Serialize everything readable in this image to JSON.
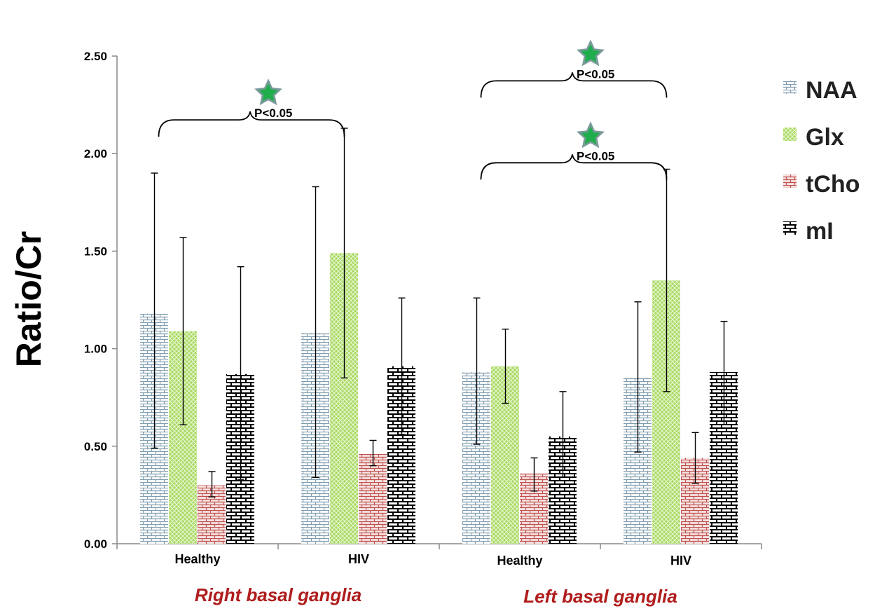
{
  "chart_data": {
    "type": "bar",
    "title": "",
    "ylabel": "Ratio/Cr",
    "xlabel": "",
    "ylim": [
      0,
      2.5
    ],
    "yticks": [
      "0.00",
      "0.50",
      "1.00",
      "1.50",
      "2.00",
      "2.50"
    ],
    "categories": [
      "Healthy",
      "HIV",
      "Healthy",
      "HIV"
    ],
    "groups": [
      {
        "label": "Right basal ganglia",
        "categories": [
          0,
          1
        ]
      },
      {
        "label": "Left basal ganglia",
        "categories": [
          2,
          3
        ]
      }
    ],
    "series": [
      {
        "name": "NAA",
        "color": "#8aa6b8",
        "pattern": "brick-fine",
        "values": [
          1.18,
          1.08,
          0.88,
          0.85
        ],
        "err_low": [
          0.49,
          0.34,
          0.51,
          0.47
        ],
        "err_high": [
          1.9,
          1.83,
          1.26,
          1.24
        ]
      },
      {
        "name": "Glx",
        "color": "#8ccf3c",
        "pattern": "crosshatch",
        "values": [
          1.09,
          1.49,
          0.91,
          1.35
        ],
        "err_low": [
          0.61,
          0.85,
          0.72,
          0.78
        ],
        "err_high": [
          1.57,
          2.13,
          1.1,
          1.92
        ]
      },
      {
        "name": "tCho",
        "color": "#c0504d",
        "pattern": "brick-fine",
        "values": [
          0.3,
          0.46,
          0.36,
          0.44
        ],
        "err_low": [
          0.24,
          0.4,
          0.27,
          0.31
        ],
        "err_high": [
          0.37,
          0.53,
          0.44,
          0.57
        ]
      },
      {
        "name": "mI",
        "color": "#111111",
        "pattern": "brick-bold",
        "values": [
          0.87,
          0.91,
          0.55,
          0.88
        ],
        "err_low": [
          0.33,
          0.56,
          0.34,
          0.61
        ],
        "err_high": [
          1.42,
          1.26,
          0.78,
          1.14
        ]
      }
    ],
    "annotations": [
      {
        "text": "P<0.05",
        "from": [
          0,
          1
        ],
        "series": "Glx",
        "y": 2.18
      },
      {
        "text": "P<0.05",
        "from": [
          2,
          3
        ],
        "series": "Glx",
        "y": 1.96
      },
      {
        "text": "P<0.05",
        "from": [
          2,
          3
        ],
        "series": "Glx",
        "y": 2.38
      }
    ],
    "legend_position": "right",
    "grid": false
  }
}
